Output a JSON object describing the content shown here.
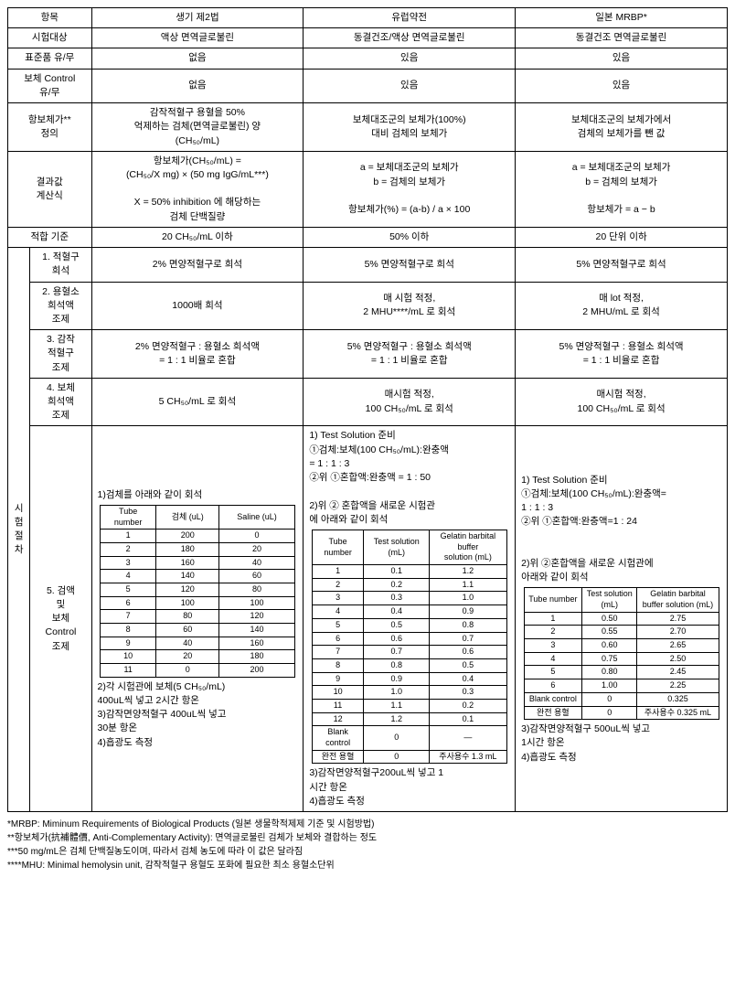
{
  "headers": {
    "c1": "항목",
    "c2": "생기 제2법",
    "c3": "유럽약전",
    "c4": "일본 MRBP*"
  },
  "rows": {
    "subject": {
      "label": "시험대상",
      "v2": "액상 면역글로불린",
      "v3": "동결건조/액상 면역글로불린",
      "v4": "동결건조 면역글로불린"
    },
    "std": {
      "label": "표준품 유/무",
      "v2": "없음",
      "v3": "있음",
      "v4": "있음"
    },
    "ctrl": {
      "label": "보체 Control\n유/무",
      "v2": "없음",
      "v3": "있음",
      "v4": "있음"
    },
    "def": {
      "label": "항보체가**\n정의",
      "v2": "감작적혈구 용혈을 50%\n억제하는 검체(면역글로불린) 양\n(CH₅₀/mL)",
      "v3": "보체대조군의 보체가(100%)\n대비 검체의 보체가",
      "v4": "보체대조군의 보체가에서\n검체의 보체가를 뺀 값"
    },
    "formula": {
      "label": "결과값\n계산식",
      "v2": "항보체가(CH₅₀/mL) =\n(CH₅₀/X mg) × (50 mg IgG/mL***)\n\nX = 50% inhibition 에 해당하는\n검체 단백질량",
      "v3": "a = 보체대조군의 보체가\nb = 검체의 보체가\n\n항보체가(%) = (a-b) / a × 100",
      "v4": "a = 보체대조군의 보체가\nb = 검체의 보체가\n\n항보체가 = a − b"
    },
    "criteria": {
      "label": "적합 기준",
      "v2": "20 CH₅₀/mL 이하",
      "v3": "50% 이하",
      "v4": "20 단위 이하"
    },
    "proc_label": "시\n험\n절\n차",
    "step1": {
      "label": "1. 적혈구\n희석",
      "v2": "2% 면양적혈구로 희석",
      "v3": "5% 면양적혈구로 희석",
      "v4": "5% 면양적혈구로 희석"
    },
    "step2": {
      "label": "2. 용혈소\n희석액\n조제",
      "v2": "1000배 희석",
      "v3": "매 시험 적정,\n2 MHU****/mL 로 회석",
      "v4": "매 lot 적정,\n2 MHU/mL 로 회석"
    },
    "step3": {
      "label": "3. 감작\n적혈구\n조제",
      "v2": "2% 면양적혈구 : 용혈소 희석액\n= 1 : 1 비율로 혼합",
      "v3": "5% 면양적혈구 : 용혈소 희석액\n= 1 : 1 비율로 혼합",
      "v4": "5% 면양적혈구 : 용혈소 희석액\n= 1 : 1 비율로 혼합"
    },
    "step4": {
      "label": "4. 보체\n희석액\n조제",
      "v2": "5 CH₅₀/mL 로 회석",
      "v3": "매시험 적정,\n100 CH₅₀/mL 로 회석",
      "v4": "매시험 적정,\n100 CH₅₀/mL 로 회석"
    },
    "step5": {
      "label": "5. 검액\n및\n보체\nControl\n조제",
      "col2": {
        "pre": "1)검체를 아래와 같이 회석",
        "table": {
          "h": [
            "Tube\nnumber",
            "검체 (uL)",
            "Saline (uL)"
          ],
          "rows": [
            [
              "1",
              "200",
              "0"
            ],
            [
              "2",
              "180",
              "20"
            ],
            [
              "3",
              "160",
              "40"
            ],
            [
              "4",
              "140",
              "60"
            ],
            [
              "5",
              "120",
              "80"
            ],
            [
              "6",
              "100",
              "100"
            ],
            [
              "7",
              "80",
              "120"
            ],
            [
              "8",
              "60",
              "140"
            ],
            [
              "9",
              "40",
              "160"
            ],
            [
              "10",
              "20",
              "180"
            ],
            [
              "11",
              "0",
              "200"
            ]
          ]
        },
        "post": "2)각 시험관에 보체(5 CH₅₀/mL)\n 400uL씩 넣고 2시간 항온\n3)감작면양적혈구 400uL씩 넣고\n 30분 항온\n4)흡광도 측정"
      },
      "col3": {
        "pre": "        1) Test Solution 준비\n①검체:보체(100 CH₅₀/mL):완충액\n        = 1 : 1 : 3\n②위 ①혼합액:완충액 = 1 : 50\n\n2)위 ② 혼합액을 새로운 시험관\n   에 아래와 같이 회석",
        "table": {
          "h": [
            "Tube number",
            "Test solution (mL)",
            "Gelatin barbital buffer\nsolution (mL)"
          ],
          "rows": [
            [
              "1",
              "0.1",
              "1.2"
            ],
            [
              "2",
              "0.2",
              "1.1"
            ],
            [
              "3",
              "0.3",
              "1.0"
            ],
            [
              "4",
              "0.4",
              "0.9"
            ],
            [
              "5",
              "0.5",
              "0.8"
            ],
            [
              "6",
              "0.6",
              "0.7"
            ],
            [
              "7",
              "0.7",
              "0.6"
            ],
            [
              "8",
              "0.8",
              "0.5"
            ],
            [
              "9",
              "0.9",
              "0.4"
            ],
            [
              "10",
              "1.0",
              "0.3"
            ],
            [
              "11",
              "1.1",
              "0.2"
            ],
            [
              "12",
              "1.2",
              "0.1"
            ],
            [
              "Blank control",
              "0",
              "—"
            ],
            [
              "완전 용혈",
              "0",
              "주사용수 1.3 mL"
            ]
          ]
        },
        "post": "3)감작면양적혈구200uL씩 넣고 1\n 시간 항온\n4)흡광도 측정"
      },
      "col4": {
        "pre": "        1) Test Solution 준비\n①검체:보체(100 CH₅₀/mL):완충액=\n        1 : 1 : 3\n②위 ①혼합액:완충액=1 : 24\n\n\n2)위 ②혼합액을 새로운 시험관에\n   아래와 같이 회석",
        "table": {
          "h": [
            "Tube number",
            "Test solution\n(mL)",
            "Gelatin barbital\nbuffer solution (mL)"
          ],
          "rows": [
            [
              "1",
              "0.50",
              "2.75"
            ],
            [
              "2",
              "0.55",
              "2.70"
            ],
            [
              "3",
              "0.60",
              "2.65"
            ],
            [
              "4",
              "0.75",
              "2.50"
            ],
            [
              "5",
              "0.80",
              "2.45"
            ],
            [
              "6",
              "1.00",
              "2.25"
            ],
            [
              "Blank control",
              "0",
              "0.325"
            ],
            [
              "완전 용혈",
              "0",
              "주사용수 0.325 mL"
            ]
          ]
        },
        "post": "3)감작면양적혈구 500uL씩 넣고\n 1시간 항온\n4)흡광도 측정"
      }
    }
  },
  "footnotes": [
    "*MRBP: Miminum Requirements of Biological Products (일본 생물학적제제 기준 및 시험방법)",
    "**항보체가(抗補體價, Anti-Complementary Activity): 면역글로불린 검체가 보체와 결합하는 정도",
    "***50 mg/mL은 검체 단백질농도이며, 따라서 검체 농도에 따라 이 값은 달라짐",
    "****MHU: Minimal hemolysin unit, 감작적혈구 용혈도 포화에 필요한 최소 용혈소단위"
  ]
}
